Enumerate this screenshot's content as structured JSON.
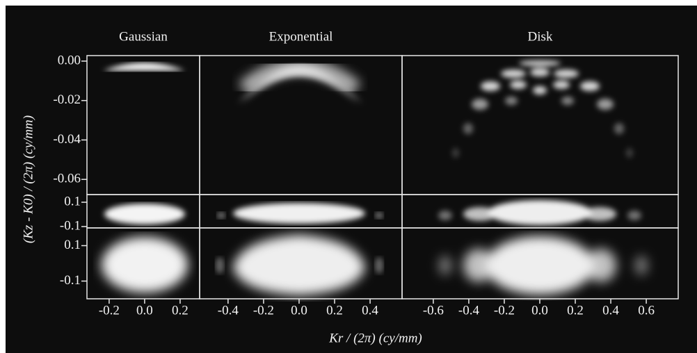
{
  "chart_data": {
    "type": "image-grid",
    "xlabel": "Kr / (2π) (cy/mm)",
    "ylabel": "(Kz - K0) / (2π) (cy/mm)",
    "columns": [
      {
        "title": "Gaussian",
        "xlim": [
          -0.325,
          0.31
        ],
        "xticks": [
          -0.2,
          {
            "value": 0,
            "label": "0.0"
          },
          0.2
        ]
      },
      {
        "title": "Exponential",
        "xlim": [
          -0.56,
          0.58
        ],
        "xticks": [
          -0.4,
          -0.2,
          {
            "value": 0,
            "label": "0.0"
          },
          0.2,
          0.4
        ]
      },
      {
        "title": "Disk",
        "xlim": [
          -0.776,
          0.78
        ],
        "xticks": [
          -0.6,
          -0.4,
          -0.2,
          {
            "value": 0,
            "label": "0.0"
          },
          0.2,
          0.4,
          0.6
        ]
      }
    ],
    "rows": [
      {
        "ylim": [
          -0.0677,
          0.0028
        ],
        "yticks": [
          {
            "value": 0,
            "label": "0.00"
          },
          {
            "value": -0.02,
            "label": "-0.02"
          },
          {
            "value": -0.04,
            "label": "-0.04"
          },
          {
            "value": -0.06,
            "label": "-0.06"
          }
        ]
      },
      {
        "ylim": [
          -0.111,
          0.163
        ],
        "yticks": [
          0.1,
          -0.1
        ]
      },
      {
        "ylim": [
          -0.2,
          0.2
        ],
        "yticks": [
          0.1,
          -0.1
        ]
      }
    ]
  }
}
